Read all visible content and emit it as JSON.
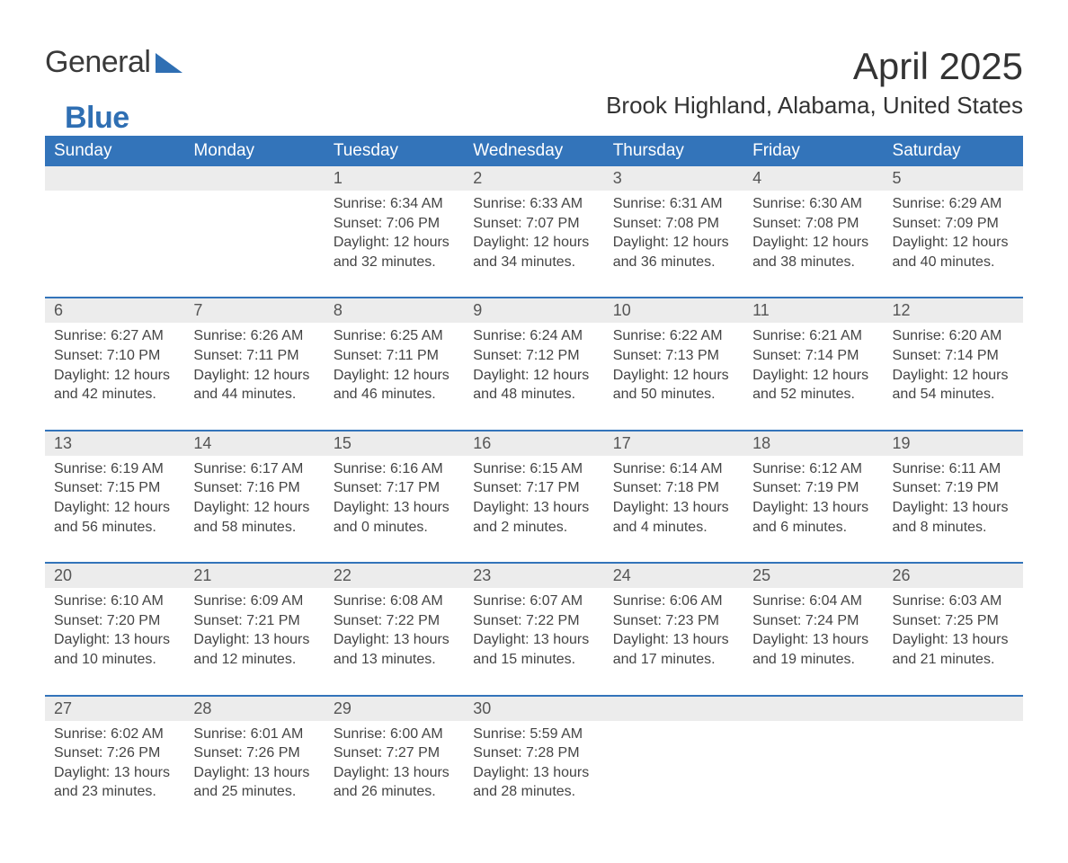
{
  "brand": {
    "general": "General",
    "blue": "Blue",
    "triangle_color": "#2f6fb3"
  },
  "title": "April 2025",
  "subtitle": "Brook Highland, Alabama, United States",
  "colors": {
    "header_bg": "#3374ba",
    "header_text": "#ffffff",
    "daynum_bg": "#ececec",
    "text": "#333333",
    "rule": "#3374ba"
  },
  "day_headers": [
    "Sunday",
    "Monday",
    "Tuesday",
    "Wednesday",
    "Thursday",
    "Friday",
    "Saturday"
  ],
  "weeks": [
    [
      null,
      null,
      {
        "n": "1",
        "sunrise": "6:34 AM",
        "sunset": "7:06 PM",
        "day_h": 12,
        "day_m": 32
      },
      {
        "n": "2",
        "sunrise": "6:33 AM",
        "sunset": "7:07 PM",
        "day_h": 12,
        "day_m": 34
      },
      {
        "n": "3",
        "sunrise": "6:31 AM",
        "sunset": "7:08 PM",
        "day_h": 12,
        "day_m": 36
      },
      {
        "n": "4",
        "sunrise": "6:30 AM",
        "sunset": "7:08 PM",
        "day_h": 12,
        "day_m": 38
      },
      {
        "n": "5",
        "sunrise": "6:29 AM",
        "sunset": "7:09 PM",
        "day_h": 12,
        "day_m": 40
      }
    ],
    [
      {
        "n": "6",
        "sunrise": "6:27 AM",
        "sunset": "7:10 PM",
        "day_h": 12,
        "day_m": 42
      },
      {
        "n": "7",
        "sunrise": "6:26 AM",
        "sunset": "7:11 PM",
        "day_h": 12,
        "day_m": 44
      },
      {
        "n": "8",
        "sunrise": "6:25 AM",
        "sunset": "7:11 PM",
        "day_h": 12,
        "day_m": 46
      },
      {
        "n": "9",
        "sunrise": "6:24 AM",
        "sunset": "7:12 PM",
        "day_h": 12,
        "day_m": 48
      },
      {
        "n": "10",
        "sunrise": "6:22 AM",
        "sunset": "7:13 PM",
        "day_h": 12,
        "day_m": 50
      },
      {
        "n": "11",
        "sunrise": "6:21 AM",
        "sunset": "7:14 PM",
        "day_h": 12,
        "day_m": 52
      },
      {
        "n": "12",
        "sunrise": "6:20 AM",
        "sunset": "7:14 PM",
        "day_h": 12,
        "day_m": 54
      }
    ],
    [
      {
        "n": "13",
        "sunrise": "6:19 AM",
        "sunset": "7:15 PM",
        "day_h": 12,
        "day_m": 56
      },
      {
        "n": "14",
        "sunrise": "6:17 AM",
        "sunset": "7:16 PM",
        "day_h": 12,
        "day_m": 58
      },
      {
        "n": "15",
        "sunrise": "6:16 AM",
        "sunset": "7:17 PM",
        "day_h": 13,
        "day_m": 0
      },
      {
        "n": "16",
        "sunrise": "6:15 AM",
        "sunset": "7:17 PM",
        "day_h": 13,
        "day_m": 2
      },
      {
        "n": "17",
        "sunrise": "6:14 AM",
        "sunset": "7:18 PM",
        "day_h": 13,
        "day_m": 4
      },
      {
        "n": "18",
        "sunrise": "6:12 AM",
        "sunset": "7:19 PM",
        "day_h": 13,
        "day_m": 6
      },
      {
        "n": "19",
        "sunrise": "6:11 AM",
        "sunset": "7:19 PM",
        "day_h": 13,
        "day_m": 8
      }
    ],
    [
      {
        "n": "20",
        "sunrise": "6:10 AM",
        "sunset": "7:20 PM",
        "day_h": 13,
        "day_m": 10
      },
      {
        "n": "21",
        "sunrise": "6:09 AM",
        "sunset": "7:21 PM",
        "day_h": 13,
        "day_m": 12
      },
      {
        "n": "22",
        "sunrise": "6:08 AM",
        "sunset": "7:22 PM",
        "day_h": 13,
        "day_m": 13
      },
      {
        "n": "23",
        "sunrise": "6:07 AM",
        "sunset": "7:22 PM",
        "day_h": 13,
        "day_m": 15
      },
      {
        "n": "24",
        "sunrise": "6:06 AM",
        "sunset": "7:23 PM",
        "day_h": 13,
        "day_m": 17
      },
      {
        "n": "25",
        "sunrise": "6:04 AM",
        "sunset": "7:24 PM",
        "day_h": 13,
        "day_m": 19
      },
      {
        "n": "26",
        "sunrise": "6:03 AM",
        "sunset": "7:25 PM",
        "day_h": 13,
        "day_m": 21
      }
    ],
    [
      {
        "n": "27",
        "sunrise": "6:02 AM",
        "sunset": "7:26 PM",
        "day_h": 13,
        "day_m": 23
      },
      {
        "n": "28",
        "sunrise": "6:01 AM",
        "sunset": "7:26 PM",
        "day_h": 13,
        "day_m": 25
      },
      {
        "n": "29",
        "sunrise": "6:00 AM",
        "sunset": "7:27 PM",
        "day_h": 13,
        "day_m": 26
      },
      {
        "n": "30",
        "sunrise": "5:59 AM",
        "sunset": "7:28 PM",
        "day_h": 13,
        "day_m": 28
      },
      null,
      null,
      null
    ]
  ],
  "labels": {
    "sunrise": "Sunrise: ",
    "sunset": "Sunset: ",
    "daylight_pre": "Daylight: ",
    "hours": " hours",
    "and": "and ",
    "minutes": " minutes."
  }
}
